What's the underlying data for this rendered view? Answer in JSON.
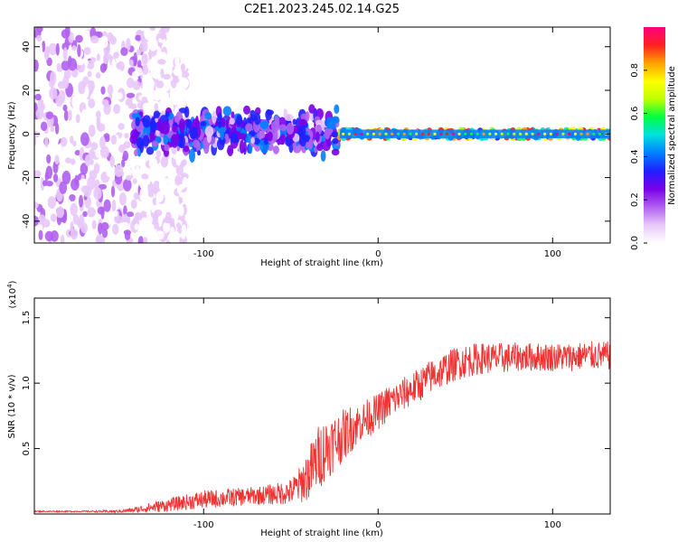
{
  "figure_title": "C2E1.2023.245.02.14.G25",
  "colors": {
    "snr_line": "#ee3333",
    "axis": "#000000",
    "colormap": [
      "#ffffff",
      "#e8c8f8",
      "#b060f0",
      "#7a00e8",
      "#2020ff",
      "#0080ff",
      "#00e0e0",
      "#00ff40",
      "#c0ff00",
      "#ffff00",
      "#ffa000",
      "#ff2020",
      "#ff0080"
    ]
  },
  "chart_data": [
    {
      "type": "heatmap",
      "title": "C2E1.2023.245.02.14.G25",
      "xlabel": "Height of straight line (km)",
      "ylabel": "Frequency (Hz)",
      "xlim": [
        -197,
        133
      ],
      "ylim": [
        -50,
        49
      ],
      "x_ticks": [
        -100,
        0,
        100
      ],
      "x_tick_labels": [
        "-100",
        "0",
        "100"
      ],
      "y_ticks": [
        -40,
        -20,
        0,
        20,
        40
      ],
      "y_tick_labels": [
        "-40",
        "-20",
        "0",
        "20",
        "40"
      ],
      "colorbar": {
        "label": "Normalized spectral amplitude",
        "range": [
          0,
          1
        ],
        "ticks": [
          0.0,
          0.2,
          0.4,
          0.6,
          0.8
        ],
        "tick_labels": [
          "0.0",
          "0.2",
          "0.4",
          "0.6",
          "0.8"
        ]
      },
      "regions": [
        {
          "x_range": [
            -197,
            -135
          ],
          "freq_spread": [
            -50,
            49
          ],
          "amplitude": [
            0.0,
            0.18
          ]
        },
        {
          "x_range": [
            -135,
            -110
          ],
          "freq_spread": [
            -50,
            49
          ],
          "amplitude": [
            0.0,
            0.06
          ]
        },
        {
          "x_range": [
            -140,
            -22
          ],
          "freq_spread": [
            -12,
            14
          ],
          "amplitude": [
            0.1,
            0.45
          ]
        },
        {
          "x_range": [
            -22,
            133
          ],
          "freq_spread": [
            -2,
            2
          ],
          "amplitude": [
            0.3,
            1.0
          ]
        }
      ]
    },
    {
      "type": "line",
      "xlabel": "Height of straight line (km)",
      "ylabel": "SNR (10 * v/v)",
      "y_multiplier": "(x10",
      "y_multiplier_exp": "4",
      "y_multiplier_close": ")",
      "xlim": [
        -197,
        133
      ],
      "ylim": [
        0.0,
        1.65
      ],
      "x_ticks": [
        -100,
        0,
        100
      ],
      "x_tick_labels": [
        "-100",
        "0",
        "100"
      ],
      "y_ticks": [
        0.5,
        1.0,
        1.5
      ],
      "y_tick_labels": [
        "0.5",
        "1.0",
        "1.5"
      ],
      "series": [
        {
          "x": [
            -197,
            -170,
            -150,
            -140,
            -130,
            -120,
            -110,
            -100,
            -90,
            -80,
            -70,
            -60,
            -50,
            -45,
            -40,
            -35,
            -30,
            -25,
            -20,
            -15,
            -10,
            -5,
            0,
            5,
            10,
            15,
            20,
            25,
            30,
            35,
            40,
            45,
            50,
            60,
            70,
            80,
            90,
            100,
            110,
            120,
            133
          ],
          "y": [
            0.02,
            0.02,
            0.02,
            0.03,
            0.05,
            0.07,
            0.09,
            0.11,
            0.12,
            0.13,
            0.14,
            0.15,
            0.17,
            0.22,
            0.3,
            0.42,
            0.5,
            0.55,
            0.6,
            0.66,
            0.7,
            0.74,
            0.78,
            0.84,
            0.88,
            0.92,
            0.96,
            1.0,
            1.05,
            1.08,
            1.12,
            1.15,
            1.17,
            1.19,
            1.19,
            1.2,
            1.2,
            1.2,
            1.2,
            1.21,
            1.21
          ],
          "noise": [
            0.005,
            0.005,
            0.01,
            0.02,
            0.04,
            0.05,
            0.06,
            0.07,
            0.07,
            0.07,
            0.07,
            0.08,
            0.1,
            0.14,
            0.2,
            0.25,
            0.25,
            0.22,
            0.2,
            0.18,
            0.15,
            0.15,
            0.14,
            0.14,
            0.13,
            0.13,
            0.13,
            0.13,
            0.13,
            0.13,
            0.13,
            0.13,
            0.13,
            0.12,
            0.12,
            0.11,
            0.11,
            0.11,
            0.11,
            0.11,
            0.11
          ]
        }
      ]
    }
  ]
}
